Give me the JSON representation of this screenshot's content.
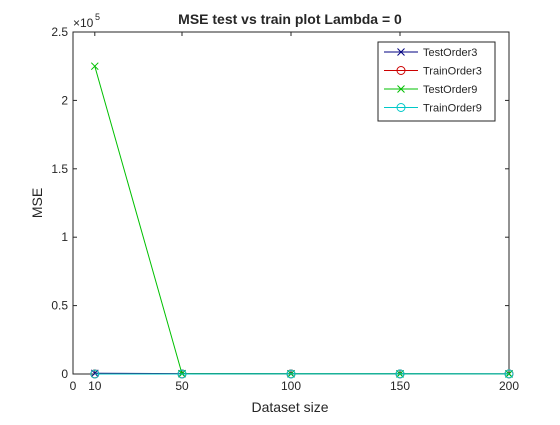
{
  "chart_data": {
    "type": "line",
    "title": "MSE test vs train plot Lambda = 0",
    "xlabel": "Dataset size",
    "ylabel": "MSE",
    "xlim": [
      0,
      200
    ],
    "ylim": [
      0,
      250000
    ],
    "x_ticks": [
      0,
      10,
      50,
      100,
      150,
      200
    ],
    "y_ticks": [
      0,
      0.5,
      1,
      1.5,
      2,
      2.5
    ],
    "y_tick_labels": [
      "0",
      "0.5",
      "1",
      "1.5",
      "2",
      "2.5"
    ],
    "y_exponent": "5",
    "y_exponent_base": "×10",
    "grid": false,
    "legend_position": "top-right",
    "x": [
      10,
      50,
      100,
      150,
      200
    ],
    "series": [
      {
        "name": "TestOrder3",
        "color": "#000080",
        "marker": "x",
        "values": [
          500,
          300,
          200,
          150,
          100
        ]
      },
      {
        "name": "TrainOrder3",
        "color": "#CC0000",
        "marker": "o",
        "values": [
          50,
          80,
          90,
          95,
          100
        ]
      },
      {
        "name": "TestOrder9",
        "color": "#00C000",
        "marker": "x",
        "values": [
          225000,
          200,
          150,
          120,
          100
        ]
      },
      {
        "name": "TrainOrder9",
        "color": "#00C8C8",
        "marker": "o",
        "values": [
          0,
          20,
          40,
          60,
          80
        ]
      }
    ]
  }
}
